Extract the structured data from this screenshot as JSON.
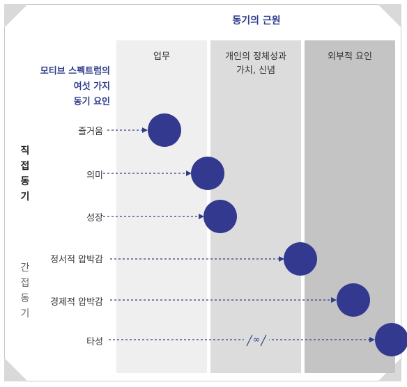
{
  "title": "동기의 근원",
  "left_title": "모티브 스펙트럼의\n여섯 가지\n동기 요인",
  "columns": [
    {
      "label": "업무"
    },
    {
      "label": "개인의 정체성과\n가치, 신념"
    },
    {
      "label": "외부적 요인"
    }
  ],
  "groups": [
    {
      "label": "직접동기"
    },
    {
      "label": "간접동기"
    }
  ],
  "rows": [
    {
      "label": "즐거움"
    },
    {
      "label": "의미"
    },
    {
      "label": "성장"
    },
    {
      "label": "정서적 압박감"
    },
    {
      "label": "경제적 압박감"
    },
    {
      "label": "타성"
    }
  ],
  "infinity_mark": "∞",
  "colors": {
    "accent": "#2f3d8c",
    "dot": "#33398f",
    "col1": "#efefef",
    "col2": "#dcdcdc",
    "col3": "#c4c4c4"
  }
}
